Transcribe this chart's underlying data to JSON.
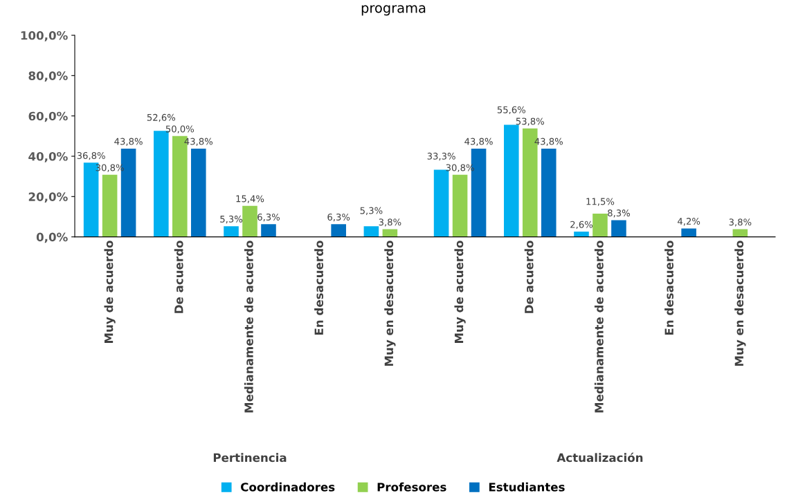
{
  "chart_data": {
    "type": "bar",
    "title": "programa",
    "categories": [
      "Muy de acuerdo",
      "De acuerdo",
      "Medianamente de acuerdo",
      "En desacuerdo",
      "Muy en desacuerdo",
      "Muy de acuerdo",
      "De acuerdo",
      "Medianamente de acuerdo",
      "En desacuerdo",
      "Muy en desacuerdo"
    ],
    "series": [
      {
        "name": "Coordinadores",
        "color": "#00b0f0",
        "values": [
          36.8,
          52.6,
          5.3,
          null,
          5.3,
          33.3,
          55.6,
          2.6,
          null,
          null
        ],
        "value_labels": [
          "36,8%",
          "52,6%",
          "5,3%",
          null,
          "5,3%",
          "33,3%",
          "55,6%",
          "2,6%",
          null,
          null
        ]
      },
      {
        "name": "Profesores",
        "color": "#92d050",
        "values": [
          30.8,
          50.0,
          15.4,
          null,
          3.8,
          30.8,
          53.8,
          11.5,
          null,
          3.8
        ],
        "value_labels": [
          "30,8%",
          "50,0%",
          "15,4%",
          null,
          "3,8%",
          "30,8%",
          "53,8%",
          "11,5%",
          null,
          "3,8%"
        ]
      },
      {
        "name": "Estudiantes",
        "color": "#0070c0",
        "values": [
          43.8,
          43.8,
          6.3,
          6.3,
          null,
          43.8,
          43.8,
          8.3,
          4.2,
          null
        ],
        "value_labels": [
          "43,8%",
          "43,8%",
          "6,3%",
          "6,3%",
          null,
          "43,8%",
          "43,8%",
          "8,3%",
          "4,2%",
          null
        ]
      }
    ],
    "annotations": [
      "Pertinencia",
      "Actualización"
    ],
    "ylim": [
      0,
      100
    ],
    "yticks": [
      {
        "value": 0,
        "label": "0,0%"
      },
      {
        "value": 20,
        "label": "20,0%"
      },
      {
        "value": 40,
        "label": "40,0%"
      },
      {
        "value": 60,
        "label": "60,0%"
      },
      {
        "value": 80,
        "label": "80,0%"
      },
      {
        "value": 100,
        "label": "100,0%"
      }
    ],
    "grid": false,
    "legend": "bottom"
  }
}
